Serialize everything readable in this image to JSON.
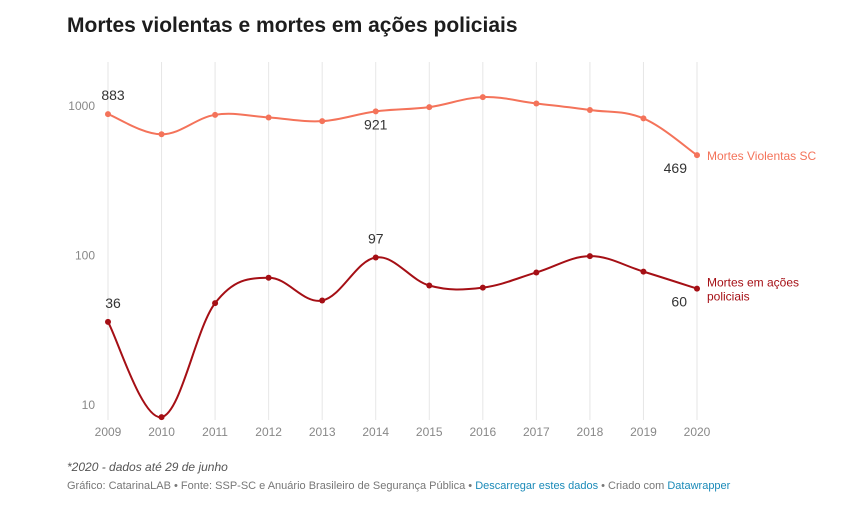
{
  "title": "Mortes violentas e mortes em ações policiais",
  "note": "*2020 - dados até 29 de junho",
  "footer": {
    "prefix": "Gráfico: CatarinaLAB • Fonte: SSP-SC e Anuário Brasileiro de Segurança Pública • ",
    "download_link": "Descarregar estes dados",
    "middle": " • Criado com ",
    "tool_link": "Datawrapper"
  },
  "chart_data": {
    "type": "line",
    "title": "Mortes violentas e mortes em ações policiais",
    "x": [
      2009,
      2010,
      2011,
      2012,
      2013,
      2014,
      2015,
      2016,
      2017,
      2018,
      2019,
      2020
    ],
    "y_scale": "log",
    "ylim": [
      8,
      1800
    ],
    "y_ticks": [
      10,
      100,
      1000
    ],
    "y_tick_labels": [
      "10",
      "100",
      "1000"
    ],
    "grid": "vertical",
    "series": [
      {
        "name": "Mortes Violentas SC",
        "color": "#f4735a",
        "values": [
          883,
          647,
          873,
          838,
          792,
          921,
          983,
          1147,
          1040,
          940,
          826,
          469
        ],
        "labels": [
          {
            "index": 0,
            "text": "883",
            "position": "above"
          },
          {
            "index": 5,
            "text": "921",
            "position": "below"
          },
          {
            "index": 11,
            "text": "469",
            "position": "below-left"
          }
        ],
        "label_lines": [
          "Mortes Violentas SC"
        ]
      },
      {
        "name": "Mortes em ações policiais",
        "color": "#a50f15",
        "values": [
          36,
          8.3,
          48,
          71,
          50,
          97,
          63,
          61,
          77,
          99,
          78,
          60
        ],
        "labels": [
          {
            "index": 0,
            "text": "36",
            "position": "above"
          },
          {
            "index": 5,
            "text": "97",
            "position": "above"
          },
          {
            "index": 11,
            "text": "60",
            "position": "below-left"
          }
        ],
        "label_lines": [
          "Mortes em ações",
          "policiais"
        ]
      }
    ]
  }
}
